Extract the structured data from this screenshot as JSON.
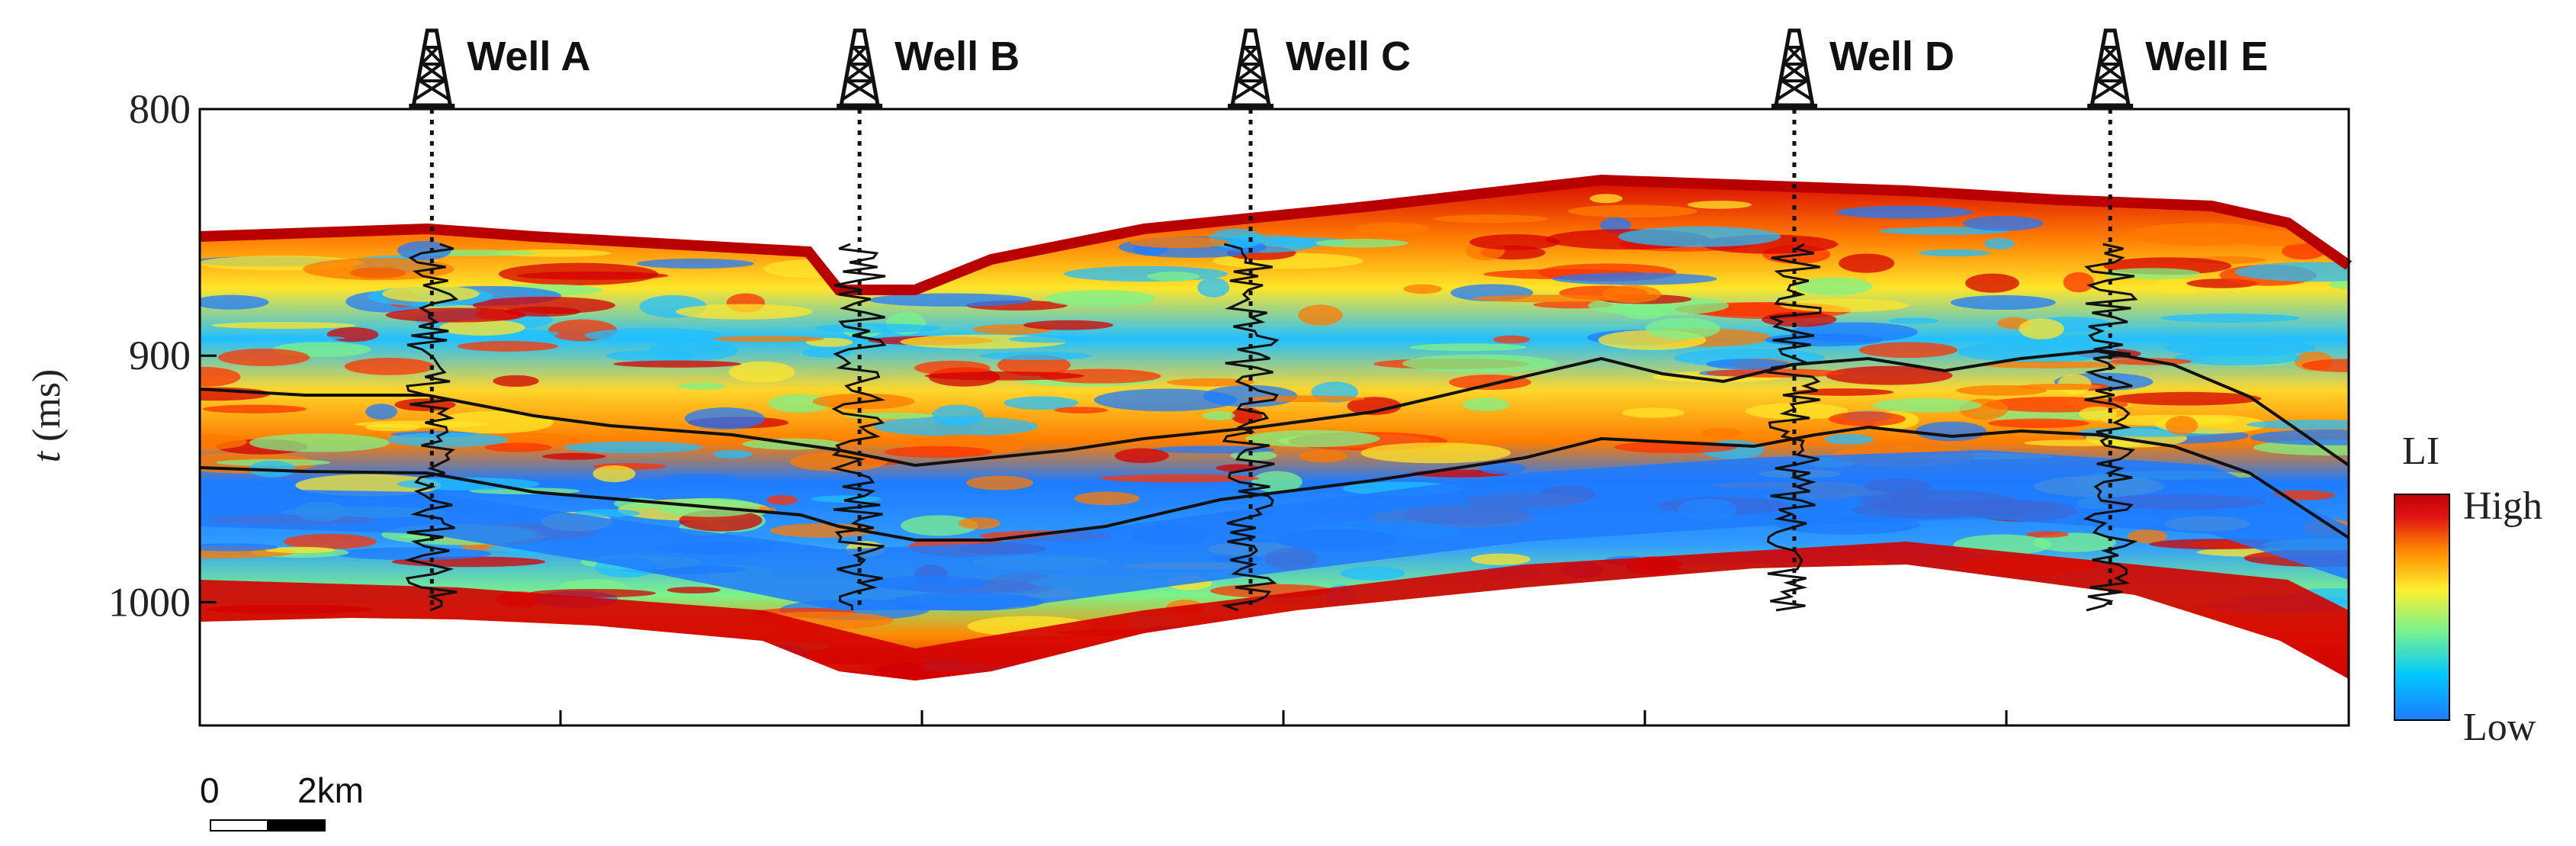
{
  "figure": {
    "y_axis": {
      "label_italic": "t",
      "label_rest": " (ms)",
      "range": [
        800,
        1050
      ],
      "ticks": [
        800,
        900,
        1000
      ],
      "tick_labels": [
        "800",
        "900",
        "1000"
      ]
    },
    "wells": [
      {
        "label": "Well A",
        "position": 0.108
      },
      {
        "label": "Well B",
        "position": 0.307
      },
      {
        "label": "Well C",
        "position": 0.489
      },
      {
        "label": "Well D",
        "position": 0.742
      },
      {
        "label": "Well E",
        "position": 0.889
      }
    ],
    "colorbar": {
      "title": "LI",
      "high_label": "High",
      "low_label": "Low",
      "colors": [
        "#1e7bff",
        "#00c8ff",
        "#7cf28a",
        "#ffef2e",
        "#ff8a00",
        "#e11414",
        "#c00000"
      ]
    },
    "scale_bar": {
      "start_label": "0",
      "end_label": "2km"
    }
  }
}
